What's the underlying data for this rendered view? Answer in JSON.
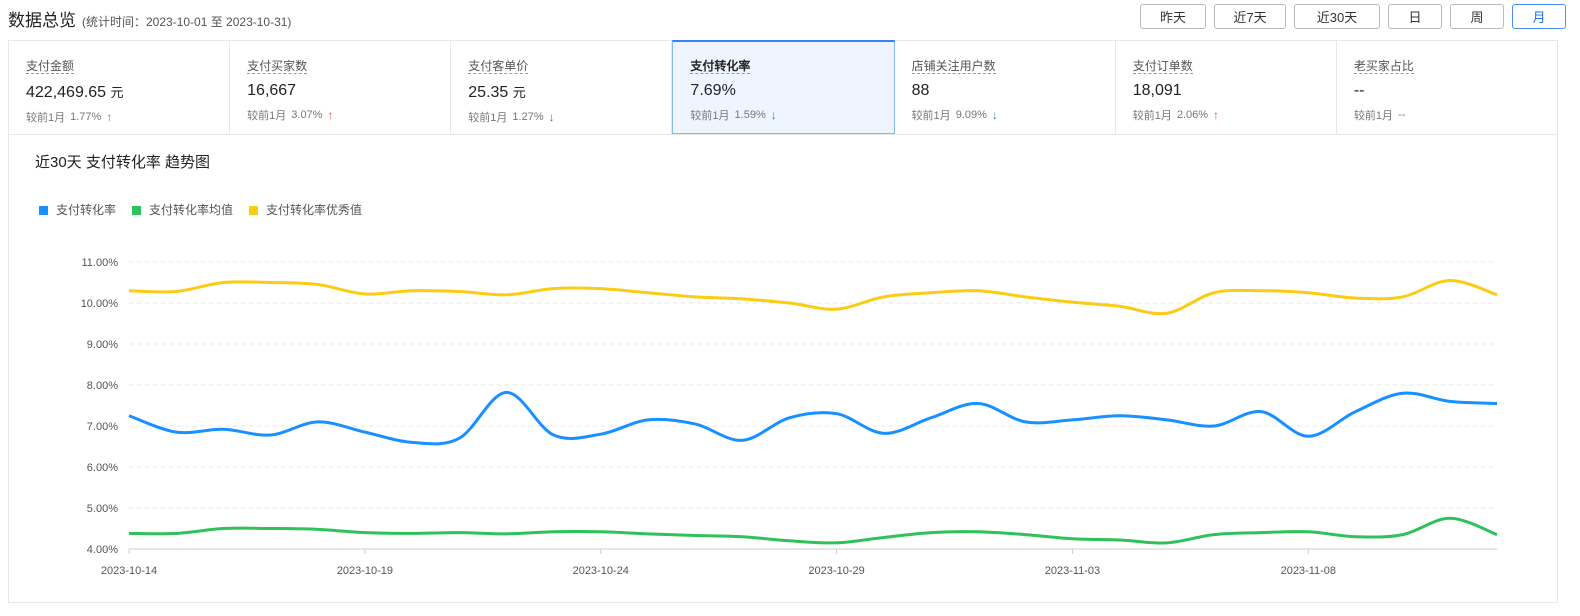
{
  "header": {
    "title": "数据总览",
    "subtitle": "(统计时间：2023-10-01 至 2023-10-31)"
  },
  "range_buttons": [
    {
      "label": "昨天",
      "active": false
    },
    {
      "label": "近7天",
      "active": false
    },
    {
      "label": "近30天",
      "active": false
    },
    {
      "label": "日",
      "active": false
    },
    {
      "label": "周",
      "active": false
    },
    {
      "label": "月",
      "active": true
    }
  ],
  "metrics": [
    {
      "label": "支付金额",
      "value": "422,469.65",
      "unit": "元",
      "compare_label": "较前1月",
      "change": "1.77%",
      "trend": "up",
      "active": false
    },
    {
      "label": "支付买家数",
      "value": "16,667",
      "unit": "",
      "compare_label": "较前1月",
      "change": "3.07%",
      "trend": "up",
      "active": false
    },
    {
      "label": "支付客单价",
      "value": "25.35",
      "unit": "元",
      "compare_label": "较前1月",
      "change": "1.27%",
      "trend": "down",
      "active": false
    },
    {
      "label": "支付转化率",
      "value": "7.69%",
      "unit": "",
      "compare_label": "较前1月",
      "change": "1.59%",
      "trend": "down",
      "active": true
    },
    {
      "label": "店铺关注用户数",
      "value": "88",
      "unit": "",
      "compare_label": "较前1月",
      "change": "9.09%",
      "trend": "down",
      "active": false
    },
    {
      "label": "支付订单数",
      "value": "18,091",
      "unit": "",
      "compare_label": "较前1月",
      "change": "2.06%",
      "trend": "up",
      "active": false
    },
    {
      "label": "老买家占比",
      "value": "--",
      "unit": "",
      "compare_label": "较前1月",
      "change": "--",
      "trend": "none",
      "active": false
    }
  ],
  "colors": {
    "accent": "#3b82f6",
    "up": "#f04b4b",
    "down": "#17a34a"
  },
  "chart_data": {
    "type": "line",
    "title": "近30天 支付转化率 趋势图",
    "x": [
      "2023-10-14",
      "2023-10-15",
      "2023-10-16",
      "2023-10-17",
      "2023-10-18",
      "2023-10-19",
      "2023-10-20",
      "2023-10-21",
      "2023-10-22",
      "2023-10-23",
      "2023-10-24",
      "2023-10-25",
      "2023-10-26",
      "2023-10-27",
      "2023-10-28",
      "2023-10-29",
      "2023-10-30",
      "2023-10-31",
      "2023-11-01",
      "2023-11-02",
      "2023-11-03",
      "2023-11-04",
      "2023-11-05",
      "2023-11-06",
      "2023-11-07",
      "2023-11-08",
      "2023-11-09",
      "2023-11-10",
      "2023-11-11",
      "2023-11-12"
    ],
    "xticks": [
      "2023-10-14",
      "2023-10-19",
      "2023-10-24",
      "2023-10-29",
      "2023-11-03",
      "2023-11-08"
    ],
    "yticks": [
      "4.00%",
      "5.00%",
      "6.00%",
      "7.00%",
      "8.00%",
      "9.00%",
      "10.00%",
      "11.00%"
    ],
    "ylim": [
      4,
      11
    ],
    "grid": true,
    "legend_position": "top-left",
    "series": [
      {
        "name": "支付转化率",
        "color": "#1890ff",
        "values": [
          7.25,
          6.85,
          6.92,
          6.78,
          7.1,
          6.85,
          6.6,
          6.7,
          7.82,
          6.78,
          6.8,
          7.15,
          7.05,
          6.65,
          7.2,
          7.3,
          6.82,
          7.2,
          7.55,
          7.1,
          7.15,
          7.25,
          7.15,
          7.0,
          7.35,
          6.75,
          7.35,
          7.8,
          7.6,
          7.55
        ]
      },
      {
        "name": "支付转化率均值",
        "color": "#2fc25b",
        "values": [
          4.38,
          4.38,
          4.5,
          4.5,
          4.48,
          4.4,
          4.38,
          4.4,
          4.37,
          4.42,
          4.42,
          4.37,
          4.33,
          4.3,
          4.2,
          4.15,
          4.28,
          4.4,
          4.42,
          4.35,
          4.25,
          4.22,
          4.15,
          4.35,
          4.4,
          4.42,
          4.3,
          4.35,
          4.75,
          4.35
        ]
      },
      {
        "name": "支付转化率优秀值",
        "color": "#facc14",
        "values": [
          10.3,
          10.28,
          10.5,
          10.5,
          10.45,
          10.22,
          10.3,
          10.28,
          10.2,
          10.35,
          10.35,
          10.25,
          10.15,
          10.1,
          10.0,
          9.85,
          10.15,
          10.25,
          10.3,
          10.15,
          10.02,
          9.92,
          9.75,
          10.25,
          10.3,
          10.25,
          10.12,
          10.15,
          10.55,
          10.2
        ]
      }
    ]
  }
}
